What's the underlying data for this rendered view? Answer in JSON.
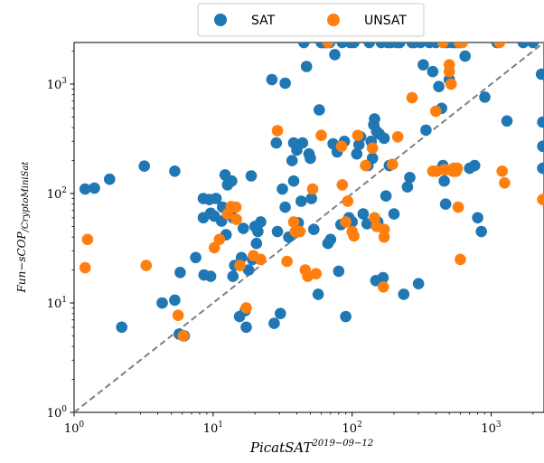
{
  "chart_data": {
    "type": "scatter",
    "title": "",
    "xlabel": "PicatSAT",
    "xlabel_superscript": "2019−09−12",
    "ylabel": "Fun−sCOP",
    "ylabel_subscript": "/CryptoMiniSat",
    "x_scale": "log",
    "y_scale": "log",
    "xlim": [
      1,
      2400
    ],
    "ylim": [
      1,
      2400
    ],
    "x_ticks": [
      {
        "value": 1,
        "base": "10",
        "exp": "0"
      },
      {
        "value": 10,
        "base": "10",
        "exp": "1"
      },
      {
        "value": 100,
        "base": "10",
        "exp": "2"
      },
      {
        "value": 1000,
        "base": "10",
        "exp": "3"
      }
    ],
    "y_ticks": [
      {
        "value": 1,
        "base": "10",
        "exp": "0"
      },
      {
        "value": 10,
        "base": "10",
        "exp": "1"
      },
      {
        "value": 100,
        "base": "10",
        "exp": "2"
      },
      {
        "value": 1000,
        "base": "10",
        "exp": "3"
      }
    ],
    "diagonal": {
      "style": "dashed",
      "color": "#7f7f7f"
    },
    "legend": {
      "placement": "top-center",
      "ncol": 2
    },
    "series": [
      {
        "name": "SAT",
        "color": "#1f77b4",
        "points": [
          [
            1.2,
            110
          ],
          [
            1.4,
            112
          ],
          [
            1.8,
            135
          ],
          [
            2.2,
            6
          ],
          [
            3.2,
            178
          ],
          [
            4.3,
            10
          ],
          [
            5.3,
            160
          ],
          [
            5.3,
            10.6
          ],
          [
            5.7,
            5.2
          ],
          [
            6.2,
            5
          ],
          [
            5.8,
            19
          ],
          [
            7.5,
            26
          ],
          [
            8.5,
            90
          ],
          [
            8.5,
            60
          ],
          [
            8.6,
            18
          ],
          [
            9.6,
            17.5
          ],
          [
            9.4,
            88
          ],
          [
            9.6,
            66
          ],
          [
            10.2,
            62
          ],
          [
            10.5,
            90
          ],
          [
            11.5,
            56
          ],
          [
            11.7,
            75
          ],
          [
            12.2,
            148
          ],
          [
            12.4,
            42
          ],
          [
            12.7,
            120
          ],
          [
            13,
            130
          ],
          [
            13.6,
            130
          ],
          [
            13.9,
            60
          ],
          [
            13.9,
            17.5
          ],
          [
            14.3,
            22
          ],
          [
            15.5,
            7.5
          ],
          [
            16,
            26
          ],
          [
            16.5,
            48
          ],
          [
            17,
            8.5
          ],
          [
            17.3,
            6
          ],
          [
            18,
            20
          ],
          [
            18.8,
            145
          ],
          [
            19.2,
            25
          ],
          [
            20,
            50
          ],
          [
            20.5,
            35
          ],
          [
            21,
            45
          ],
          [
            22,
            55
          ],
          [
            26.5,
            1100
          ],
          [
            27.5,
            6.5
          ],
          [
            28.5,
            290
          ],
          [
            29,
            45
          ],
          [
            30.5,
            8
          ],
          [
            31.5,
            110
          ],
          [
            33,
            1020
          ],
          [
            33,
            75
          ],
          [
            35,
            40
          ],
          [
            37,
            200
          ],
          [
            38,
            290
          ],
          [
            38,
            130
          ],
          [
            40,
            250
          ],
          [
            41,
            54
          ],
          [
            43,
            85
          ],
          [
            44,
            290
          ],
          [
            45,
            2400
          ],
          [
            47,
            1450
          ],
          [
            49,
            230
          ],
          [
            50,
            210
          ],
          [
            51,
            90
          ],
          [
            53,
            47
          ],
          [
            57,
            12
          ],
          [
            58,
            580
          ],
          [
            60,
            2400
          ],
          [
            61,
            2400
          ],
          [
            63,
            2400
          ],
          [
            65,
            2400
          ],
          [
            67,
            35
          ],
          [
            69,
            2400
          ],
          [
            70,
            38
          ],
          [
            73,
            285
          ],
          [
            75,
            1860
          ],
          [
            78,
            240
          ],
          [
            80,
            19.5
          ],
          [
            83,
            52
          ],
          [
            85,
            2400
          ],
          [
            88,
            300
          ],
          [
            90,
            7.5
          ],
          [
            95,
            60
          ],
          [
            97,
            2400
          ],
          [
            100,
            55
          ],
          [
            103,
            2400
          ],
          [
            108,
            230
          ],
          [
            112,
            280
          ],
          [
            115,
            330
          ],
          [
            120,
            65
          ],
          [
            128,
            53
          ],
          [
            130,
            180
          ],
          [
            133,
            2400
          ],
          [
            137,
            300
          ],
          [
            140,
            210
          ],
          [
            143,
            425
          ],
          [
            145,
            480
          ],
          [
            148,
            16
          ],
          [
            150,
            370
          ],
          [
            153,
            55
          ],
          [
            157,
            350
          ],
          [
            162,
            2400
          ],
          [
            167,
            17
          ],
          [
            170,
            320
          ],
          [
            175,
            95
          ],
          [
            180,
            2400
          ],
          [
            185,
            180
          ],
          [
            190,
            2400
          ],
          [
            200,
            65
          ],
          [
            210,
            2400
          ],
          [
            220,
            2400
          ],
          [
            235,
            12
          ],
          [
            250,
            115
          ],
          [
            260,
            140
          ],
          [
            270,
            2400
          ],
          [
            280,
            2400
          ],
          [
            300,
            15
          ],
          [
            310,
            2400
          ],
          [
            325,
            1500
          ],
          [
            340,
            380
          ],
          [
            360,
            2400
          ],
          [
            380,
            1300
          ],
          [
            400,
            2400
          ],
          [
            420,
            950
          ],
          [
            440,
            600
          ],
          [
            450,
            180
          ],
          [
            460,
            130
          ],
          [
            470,
            80
          ],
          [
            480,
            2400
          ],
          [
            500,
            1100
          ],
          [
            520,
            2400
          ],
          [
            540,
            160
          ],
          [
            550,
            2400
          ],
          [
            580,
            2400
          ],
          [
            600,
            2400
          ],
          [
            650,
            1800
          ],
          [
            700,
            170
          ],
          [
            760,
            180
          ],
          [
            800,
            60
          ],
          [
            850,
            45
          ],
          [
            900,
            760
          ],
          [
            1100,
            2400
          ],
          [
            1300,
            460
          ],
          [
            1700,
            2400
          ],
          [
            2000,
            2400
          ],
          [
            2300,
            1230
          ],
          [
            2350,
            450
          ],
          [
            2350,
            270
          ],
          [
            2350,
            170
          ]
        ]
      },
      {
        "name": "UNSAT",
        "color": "#ff7f0e",
        "points": [
          [
            1.2,
            21
          ],
          [
            1.25,
            38
          ],
          [
            3.3,
            22
          ],
          [
            5.6,
            7.7
          ],
          [
            6.1,
            5
          ],
          [
            10.2,
            32
          ],
          [
            11.1,
            38
          ],
          [
            12.7,
            65
          ],
          [
            13.5,
            76
          ],
          [
            14.6,
            75
          ],
          [
            14.7,
            58
          ],
          [
            15.6,
            22
          ],
          [
            17.3,
            9
          ],
          [
            19.5,
            27
          ],
          [
            22,
            25
          ],
          [
            29,
            375
          ],
          [
            34,
            24
          ],
          [
            38,
            55
          ],
          [
            39,
            45
          ],
          [
            42,
            45
          ],
          [
            46,
            20
          ],
          [
            48,
            17.5
          ],
          [
            52,
            110
          ],
          [
            55,
            18.5
          ],
          [
            60,
            340
          ],
          [
            67,
            2400
          ],
          [
            84,
            270
          ],
          [
            85,
            120
          ],
          [
            90,
            55
          ],
          [
            93,
            85
          ],
          [
            100,
            45
          ],
          [
            103,
            41
          ],
          [
            110,
            340
          ],
          [
            125,
            180
          ],
          [
            140,
            260
          ],
          [
            145,
            60
          ],
          [
            150,
            50
          ],
          [
            170,
            47
          ],
          [
            170,
            40
          ],
          [
            168,
            14
          ],
          [
            195,
            185
          ],
          [
            213,
            330
          ],
          [
            270,
            750
          ],
          [
            380,
            160
          ],
          [
            400,
            565
          ],
          [
            405,
            160
          ],
          [
            450,
            2400
          ],
          [
            460,
            165
          ],
          [
            470,
            165
          ],
          [
            500,
            1500
          ],
          [
            500,
            1300
          ],
          [
            515,
            1000
          ],
          [
            530,
            160
          ],
          [
            540,
            170
          ],
          [
            560,
            160
          ],
          [
            570,
            170
          ],
          [
            580,
            75
          ],
          [
            590,
            2400
          ],
          [
            600,
            25
          ],
          [
            620,
            2400
          ],
          [
            1150,
            2400
          ],
          [
            1200,
            160
          ],
          [
            1250,
            125
          ],
          [
            2350,
            88
          ]
        ]
      }
    ]
  }
}
